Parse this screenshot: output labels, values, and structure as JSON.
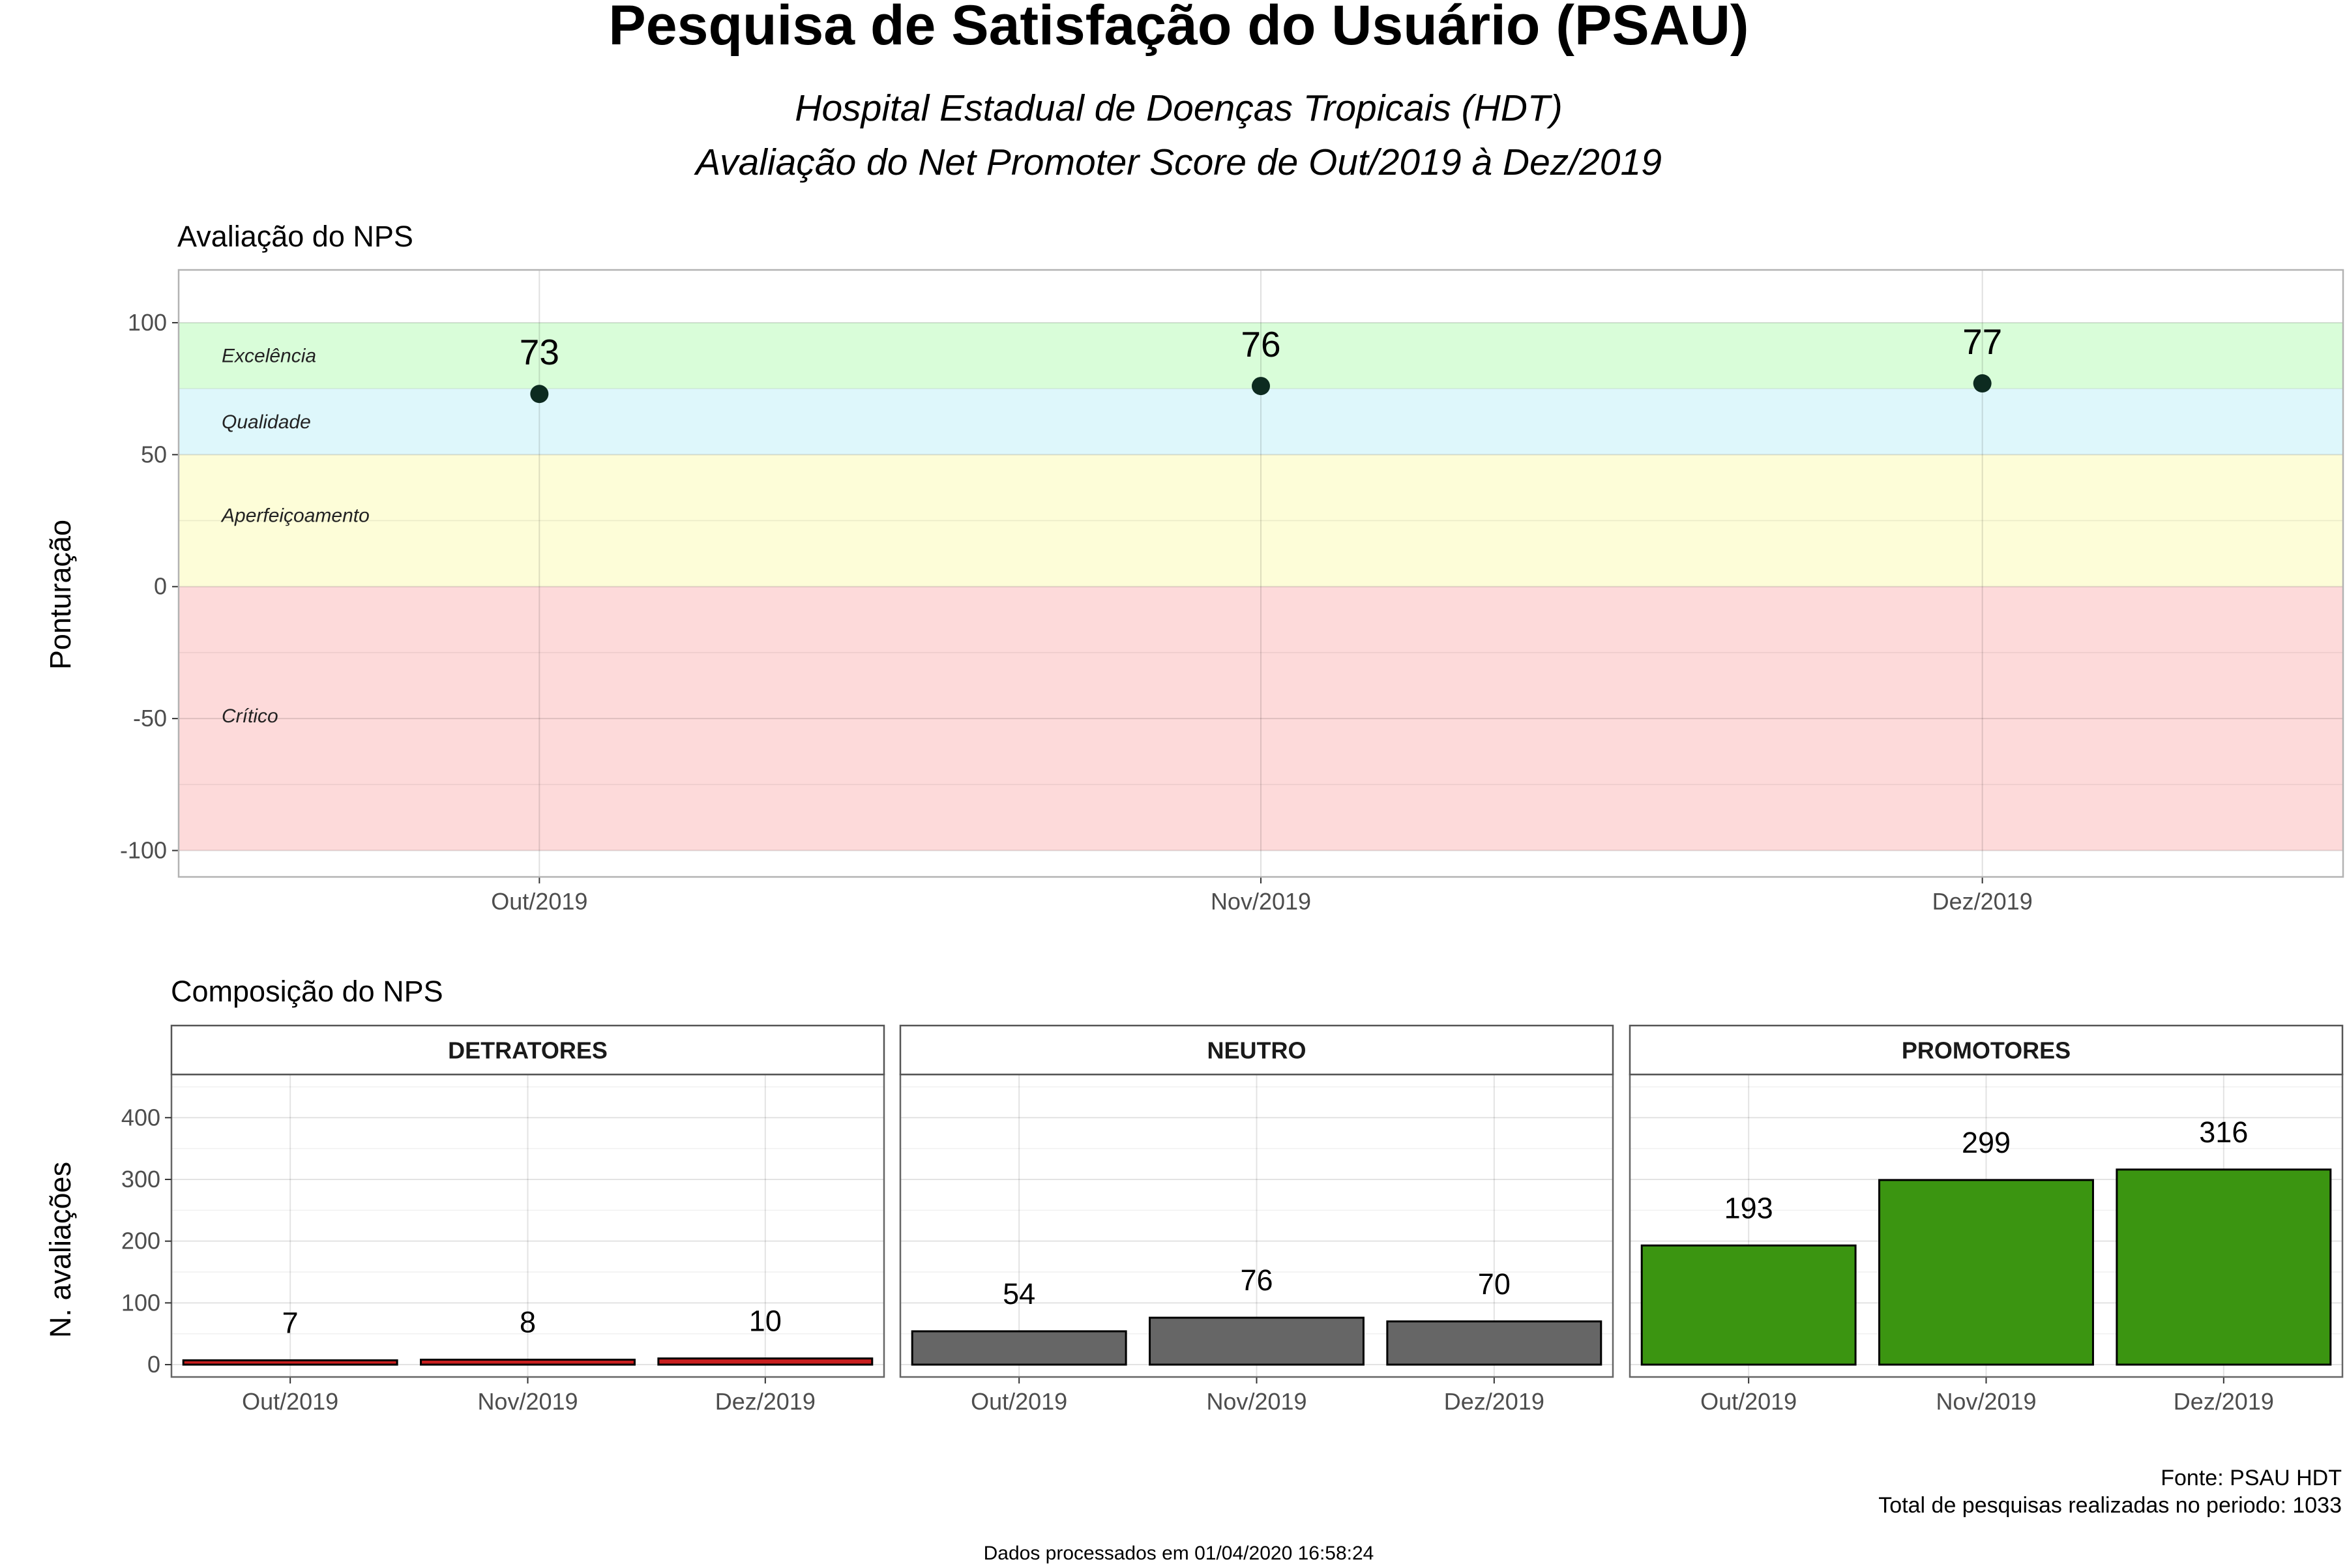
{
  "title": "Pesquisa de Satisfação do Usuário (PSAU)",
  "subtitle_1": "Hospital Estadual de Doenças Tropicais (HDT)",
  "subtitle_2": "Avaliação do Net Promoter Score de Out/2019 à Dez/2019",
  "caption_1": "Fonte: PSAU HDT",
  "caption_2": "Total de pesquisas realizadas no periodo: 1033",
  "footnote": "Dados processados em 01/04/2020 16:58:24",
  "colors": {
    "excelencia": "#d9fdd9",
    "qualidade": "#def7fb",
    "aperfeicoamento": "#fdfdd8",
    "critico": "#fddada",
    "point": "#0d2b20",
    "detratores": "#c81e1e",
    "neutro": "#666666",
    "promotores": "#3b9511"
  },
  "chart_data": [
    {
      "type": "scatter",
      "title": "Avaliação do NPS",
      "xlabel": "",
      "ylabel": "Ponturação",
      "categories": [
        "Out/2019",
        "Nov/2019",
        "Dez/2019"
      ],
      "values": [
        73,
        76,
        77
      ],
      "ylim": [
        -110,
        100
      ],
      "yticks": [
        100,
        50,
        0,
        -50,
        -100
      ],
      "grid": true,
      "zones": [
        {
          "label": "Excelência",
          "from": 75,
          "to": 100
        },
        {
          "label": "Qualidade",
          "from": 50,
          "to": 75
        },
        {
          "label": "Aperfeiçoamento",
          "from": 0,
          "to": 50
        },
        {
          "label": "Crítico",
          "from": -100,
          "to": 0
        }
      ]
    },
    {
      "type": "bar",
      "title": "Composição do NPS",
      "xlabel": "",
      "ylabel": "N. avaliações",
      "categories": [
        "Out/2019",
        "Nov/2019",
        "Dez/2019"
      ],
      "ylim": [
        0,
        400
      ],
      "yticks": [
        0,
        100,
        200,
        300,
        400
      ],
      "grid": true,
      "series": [
        {
          "name": "DETRATORES",
          "values": [
            7,
            8,
            10
          ]
        },
        {
          "name": "NEUTRO",
          "values": [
            54,
            76,
            70
          ]
        },
        {
          "name": "PROMOTORES",
          "values": [
            193,
            299,
            316
          ]
        }
      ]
    }
  ]
}
